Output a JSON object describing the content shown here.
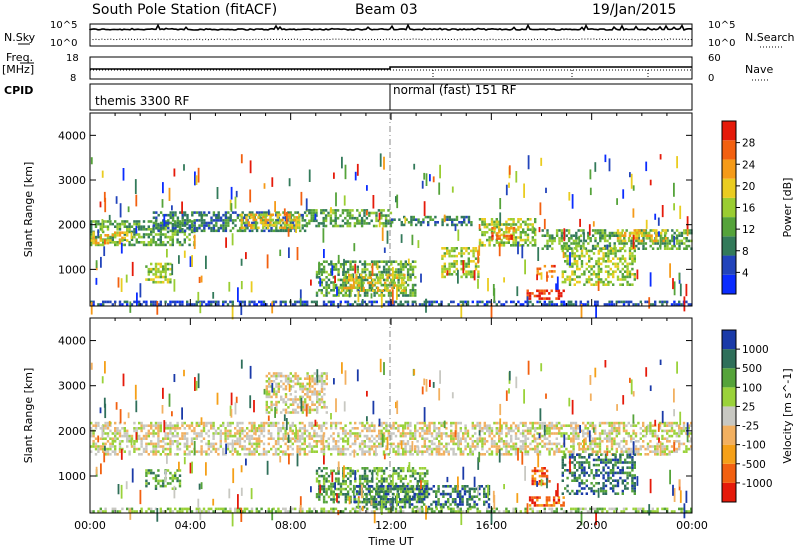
{
  "header": {
    "station": "South Pole Station (fitACF)",
    "beam": "Beam 03",
    "date": "19/Jan/2015"
  },
  "top_panels": {
    "nsky_label": "N.Sky",
    "nsearch_label": "N.Search",
    "log_ticks_left": [
      "10^5",
      "10^0"
    ],
    "log_ticks_right": [
      "10^5",
      "10^0"
    ],
    "freq_label": "Freq.",
    "freq_unit": "[MHz]",
    "freq_ticks": [
      "18",
      "8"
    ],
    "nave_label": "Nave",
    "nave_ticks": [
      "60",
      "0"
    ],
    "cpid_label": "CPID",
    "cpid_segments": [
      "themis 3300 RF",
      "normal (fast) 151 RF"
    ]
  },
  "chart_data": [
    {
      "type": "heatmap",
      "name": "power",
      "ylabel": "Slant Range [km]",
      "xlabel": "",
      "ylim": [
        180,
        4500
      ],
      "yticks": [
        1000,
        2000,
        3000,
        4000
      ],
      "xlim_hours": [
        0,
        24
      ],
      "colorbar_label": "Power [dB]",
      "colorbar_ticks": [
        "4",
        "8",
        "12",
        "16",
        "20",
        "24",
        "28"
      ],
      "colors": [
        "#0a2cff",
        "#2244bb",
        "#337a5a",
        "#55a33a",
        "#9acd32",
        "#eacc20",
        "#f59a18",
        "#f26010",
        "#e51a0a"
      ],
      "echo_bands": [
        {
          "t0": 0.0,
          "t1": 4.2,
          "r0": 1500,
          "r1": 2100,
          "level": 3
        },
        {
          "t0": 0.0,
          "t1": 1.5,
          "r0": 1550,
          "r1": 1850,
          "level": 5
        },
        {
          "t0": 2.5,
          "t1": 8.6,
          "r0": 1850,
          "r1": 2300,
          "level": 2
        },
        {
          "t0": 6.0,
          "t1": 8.4,
          "r0": 1900,
          "r1": 2250,
          "level": 5
        },
        {
          "t0": 8.6,
          "t1": 12.0,
          "r0": 1950,
          "r1": 2350,
          "level": 3
        },
        {
          "t0": 12.0,
          "t1": 15.3,
          "r0": 1950,
          "r1": 2200,
          "level": 2
        },
        {
          "t0": 15.5,
          "t1": 17.8,
          "r0": 1500,
          "r1": 2150,
          "level": 4
        },
        {
          "t0": 16.0,
          "t1": 17.0,
          "r0": 1650,
          "r1": 1950,
          "level": 7
        },
        {
          "t0": 18.0,
          "t1": 24.0,
          "r0": 1450,
          "r1": 1900,
          "level": 3
        },
        {
          "t0": 21.0,
          "t1": 23.0,
          "r0": 1600,
          "r1": 1900,
          "level": 5
        },
        {
          "t0": 2.2,
          "t1": 3.3,
          "r0": 700,
          "r1": 1150,
          "level": 4
        },
        {
          "t0": 9.0,
          "t1": 13.0,
          "r0": 400,
          "r1": 1200,
          "level": 3
        },
        {
          "t0": 10.0,
          "t1": 12.6,
          "r0": 500,
          "r1": 900,
          "level": 5
        },
        {
          "t0": 14.0,
          "t1": 15.5,
          "r0": 800,
          "r1": 1500,
          "level": 4
        },
        {
          "t0": 17.4,
          "t1": 18.9,
          "r0": 300,
          "r1": 550,
          "level": 8
        },
        {
          "t0": 17.8,
          "t1": 18.6,
          "r0": 800,
          "r1": 1100,
          "level": 7
        },
        {
          "t0": 18.8,
          "t1": 21.8,
          "r0": 600,
          "r1": 1500,
          "level": 4
        },
        {
          "t0": 0.0,
          "t1": 24.0,
          "r0": 180,
          "r1": 300,
          "level": 1
        }
      ]
    },
    {
      "type": "heatmap",
      "name": "velocity",
      "ylabel": "Slant Range [km]",
      "xlabel": "Time UT",
      "ylim": [
        180,
        4500
      ],
      "yticks": [
        1000,
        2000,
        3000,
        4000
      ],
      "xlim_hours": [
        0,
        24
      ],
      "xticks": [
        "00:00",
        "04:00",
        "08:00",
        "12:00",
        "16:00",
        "20:00",
        "00:00"
      ],
      "colorbar_label": "Velocity [m s^-1]",
      "colorbar_ticks": [
        "-1000",
        "-500",
        "-100",
        "-25",
        "25",
        "100",
        "500",
        "1000"
      ],
      "colors": [
        "#e51a0a",
        "#f26010",
        "#f5a018",
        "#f2b060",
        "#c8c8c2",
        "#9ad23a",
        "#55a33a",
        "#2f6f5a",
        "#1a3aa8"
      ],
      "echo_bands": [
        {
          "t0": 0.0,
          "t1": 24.0,
          "r0": 1450,
          "r1": 2200,
          "level": 4
        },
        {
          "t0": 2.2,
          "t1": 3.6,
          "r0": 700,
          "r1": 1150,
          "level": 6
        },
        {
          "t0": 7.0,
          "t1": 9.5,
          "r0": 2400,
          "r1": 3300,
          "level": 4
        },
        {
          "t0": 9.0,
          "t1": 13.5,
          "r0": 400,
          "r1": 1200,
          "level": 6
        },
        {
          "t0": 10.5,
          "t1": 16.0,
          "r0": 300,
          "r1": 800,
          "level": 7
        },
        {
          "t0": 17.4,
          "t1": 18.9,
          "r0": 300,
          "r1": 550,
          "level": 1
        },
        {
          "t0": 17.6,
          "t1": 18.4,
          "r0": 800,
          "r1": 1200,
          "level": 1
        },
        {
          "t0": 18.8,
          "t1": 21.8,
          "r0": 600,
          "r1": 1500,
          "level": 7
        },
        {
          "t0": 0.0,
          "t1": 24.0,
          "r0": 180,
          "r1": 300,
          "level": 5
        }
      ]
    }
  ]
}
